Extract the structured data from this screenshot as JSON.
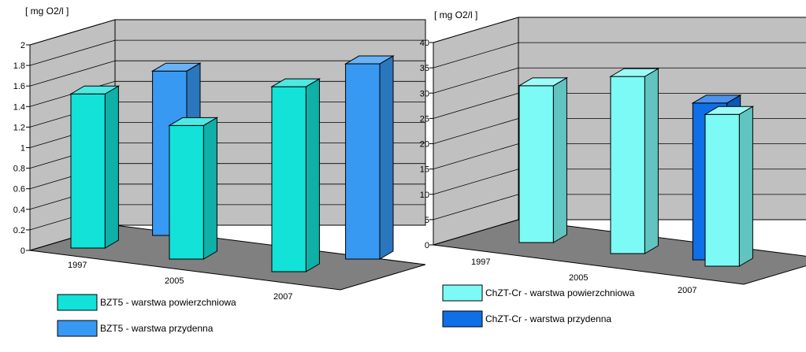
{
  "chart_data": [
    {
      "type": "bar",
      "unit_label": "[ mg O2/l ]",
      "categories": [
        "1997",
        "2005",
        "2007"
      ],
      "ylim": [
        0,
        2
      ],
      "yticks": [
        "0",
        "0.2",
        "0.4",
        "0.6",
        "0.8",
        "1",
        "1.2",
        "1.4",
        "1.6",
        "1.8",
        "2"
      ],
      "grid": true,
      "legend_position": "bottom",
      "series": [
        {
          "name": "BZT5 - warstwa powierzchniowa",
          "color": "#12E2D8",
          "values": [
            1.5,
            1.3,
            1.8
          ]
        },
        {
          "name": "BZT5 - warstwa przydenna",
          "color": "#3799F2",
          "values": [
            1.6,
            null,
            1.9
          ]
        }
      ]
    },
    {
      "type": "bar",
      "unit_label": "[ mg O2/l ]",
      "categories": [
        "1997",
        "2005",
        "2007"
      ],
      "ylim": [
        0,
        40
      ],
      "yticks": [
        "0",
        "5",
        "10",
        "15",
        "20",
        "25",
        "30",
        "35",
        "40"
      ],
      "grid": true,
      "legend_position": "bottom",
      "series": [
        {
          "name": "ChZT-Cr - warstwa powierzchniowa",
          "color": "#7CFBF6",
          "values": [
            31,
            35,
            30
          ]
        },
        {
          "name": "ChZT-Cr - warstwa przydenna",
          "color": "#0F6FE6",
          "values": [
            null,
            null,
            31
          ]
        }
      ]
    }
  ]
}
